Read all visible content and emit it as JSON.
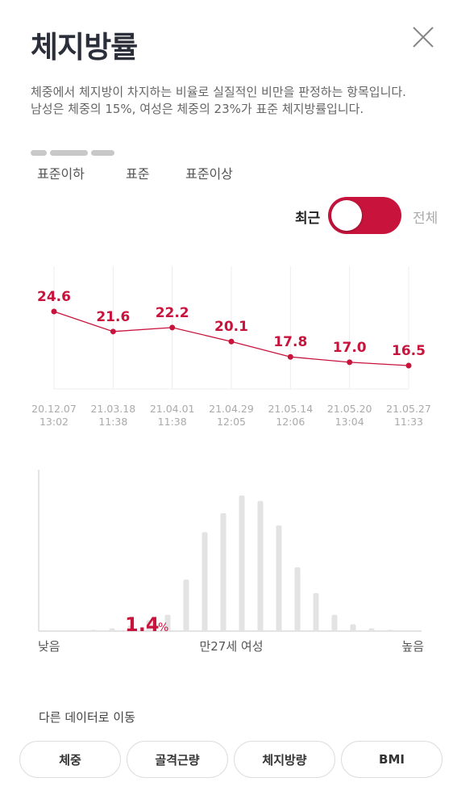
{
  "header": {
    "title": "체지방률",
    "close_icon": "close-icon"
  },
  "description": "체중에서 체지방이 차지하는 비율로 실질적인 비만을 판정하는 항목입니다. 남성은 체중의 15%, 여성은 체중의 23%가 표준 체지방률입니다.",
  "range_labels": [
    "표준이하",
    "표준",
    "표준이상"
  ],
  "toggle": {
    "label_recent": "최근",
    "label_all": "전체",
    "state": "recent",
    "color": "#c8143c"
  },
  "line_chart": {
    "color": "#c8143c",
    "chart_data": {
      "type": "line",
      "x": [
        "20.12.07 13:02",
        "21.03.18 11:38",
        "21.04.01 11:38",
        "21.04.29 12:05",
        "21.05.14 12:06",
        "21.05.20 13:04",
        "21.05.27 11:33"
      ],
      "x_date": [
        "20.12.07",
        "21.03.18",
        "21.04.01",
        "21.04.29",
        "21.05.14",
        "21.05.20",
        "21.05.27"
      ],
      "x_time": [
        "13:02",
        "11:38",
        "11:38",
        "12:05",
        "12:06",
        "13:04",
        "11:33"
      ],
      "values": [
        24.6,
        21.6,
        22.2,
        20.1,
        17.8,
        17.0,
        16.5
      ],
      "value_labels": [
        "24.6",
        "21.6",
        "22.2",
        "20.1",
        "17.8",
        "17.0",
        "16.5"
      ]
    }
  },
  "distribution": {
    "user_value": "1.4",
    "user_unit": "%",
    "label_low": "낮음",
    "label_center": "만27세 여성",
    "label_high": "높음",
    "bar_color": "#e3e3e3",
    "relative_heights": [
      0,
      0,
      0,
      0.01,
      0.02,
      0.04,
      0.08,
      0.12,
      0.38,
      0.73,
      0.87,
      1.0,
      0.96,
      0.78,
      0.47,
      0.28,
      0.12,
      0.05,
      0.02,
      0.01
    ]
  },
  "navigation": {
    "title": "다른 데이터로 이동",
    "buttons": [
      "체중",
      "골격근량",
      "체지방량",
      "BMI"
    ]
  }
}
